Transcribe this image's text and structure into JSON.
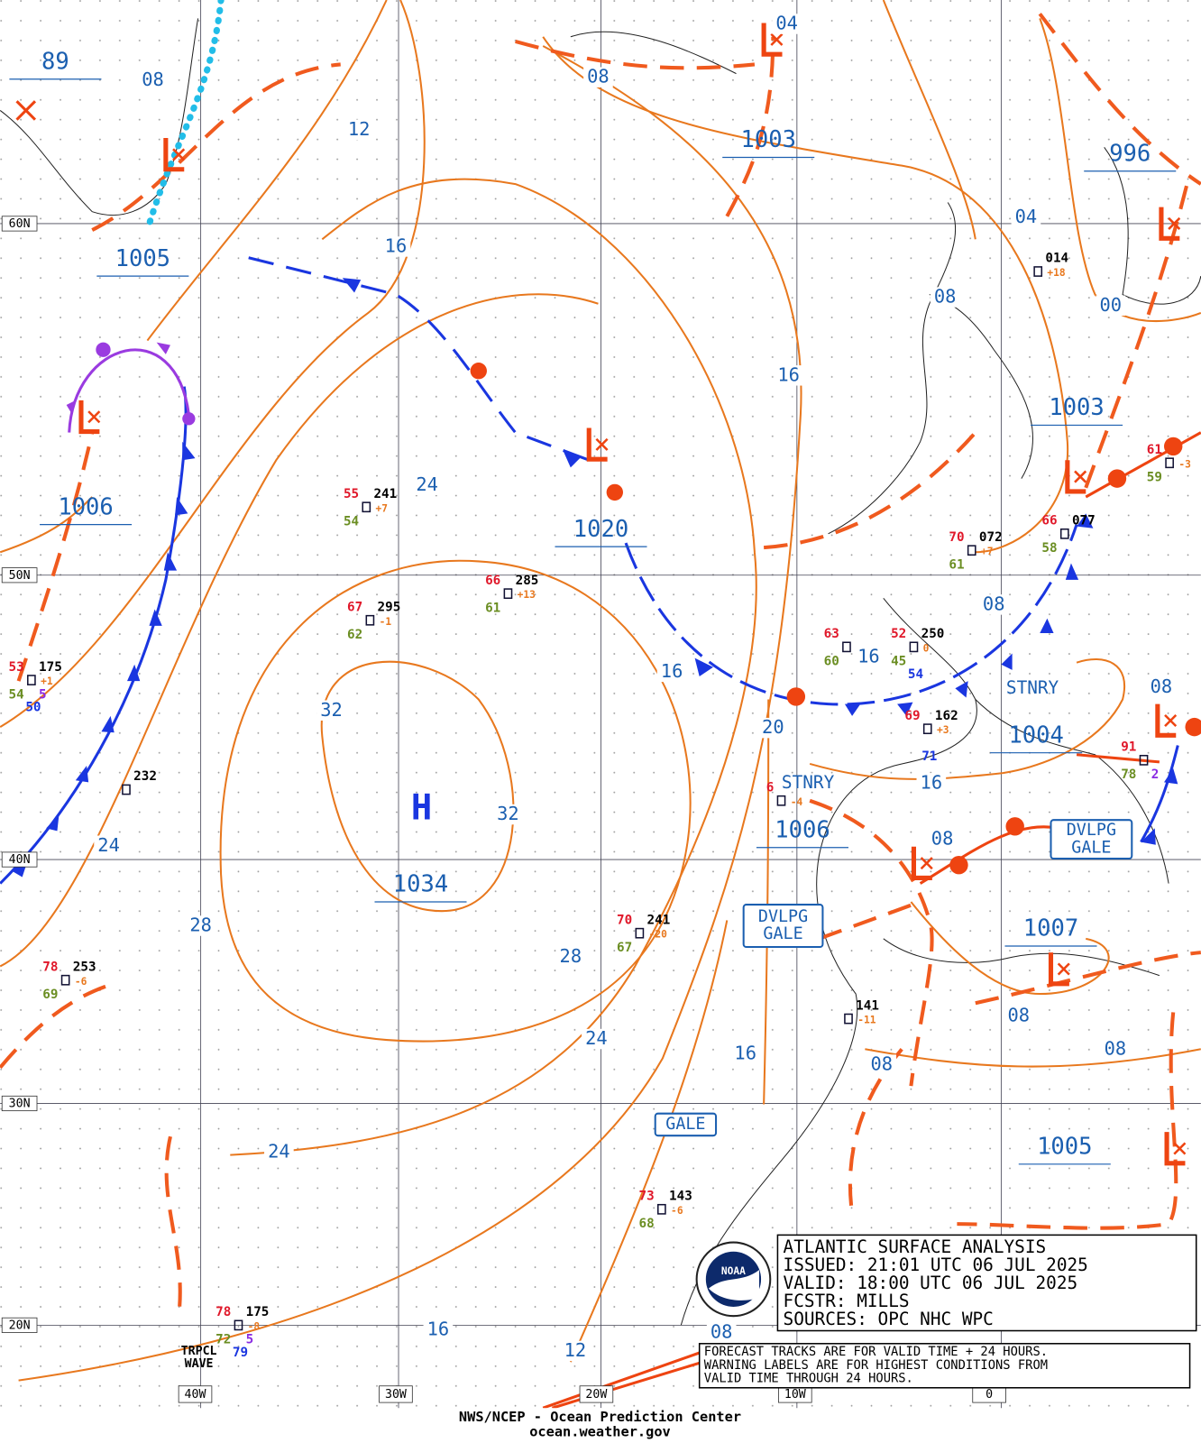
{
  "lat_labels": [
    "60N",
    "50N",
    "40N",
    "30N",
    "20N"
  ],
  "lon_labels": [
    "40W",
    "30W",
    "20W",
    "10W",
    "0"
  ],
  "high": {
    "symbol": "H",
    "pressure": "1034"
  },
  "pressure_labels": [
    "89",
    "1005",
    "1006",
    "1020",
    "1003",
    "996",
    "1003",
    "1004",
    "1006",
    "1007",
    "1005"
  ],
  "isobar_labels": [
    "08",
    "12",
    "16",
    "24",
    "24",
    "32",
    "32",
    "28",
    "28",
    "24",
    "24",
    "16",
    "20",
    "16",
    "16",
    "16",
    "08",
    "04",
    "08",
    "16",
    "08",
    "08",
    "08",
    "08",
    "08",
    "08",
    "16",
    "12",
    "08",
    "00",
    "04"
  ],
  "front_labels": [
    "STNRY",
    "STNRY"
  ],
  "warnings": [
    [
      "DVLPG",
      "GALE"
    ],
    [
      "DVLPG",
      "GALE"
    ],
    [
      "GALE"
    ]
  ],
  "wave_label": [
    "TRPCL",
    "WAVE"
  ],
  "stations": [
    {
      "temp": "55",
      "pressure": "241",
      "dew": "54",
      "tendency": "+7"
    },
    {
      "temp": "66",
      "pressure": "285",
      "dew": "61",
      "tendency": "+13"
    },
    {
      "temp": "67",
      "pressure": "295",
      "dew": "62",
      "tendency": "-1"
    },
    {
      "temp": "53",
      "pressure": "175",
      "dew": "54",
      "tendency": "+1",
      "extra": "5",
      "sst": "50"
    },
    {
      "pressure": "232"
    },
    {
      "temp": "78",
      "pressure": "253",
      "dew": "69",
      "tendency": "-6"
    },
    {
      "temp": "70",
      "pressure": "241",
      "dew": "67",
      "tendency": "-20"
    },
    {
      "pressure": "014",
      "tendency": "+18"
    },
    {
      "temp": "70",
      "pressure": "072",
      "dew": "61",
      "tendency": "+7"
    },
    {
      "temp": "66",
      "pressure": "077",
      "dew": "58"
    },
    {
      "temp": "61",
      "dew": "59",
      "tendency": "-3"
    },
    {
      "temp": "52",
      "pressure": "250",
      "dew": "45",
      "tendency": "0",
      "sst": "54"
    },
    {
      "temp": "63",
      "dew": "60"
    },
    {
      "temp": "69",
      "pressure": "162",
      "tendency": "+3",
      "sst": "71"
    },
    {
      "temp": "6",
      "tendency": "-4"
    },
    {
      "pressure": "141",
      "tendency": "-11"
    },
    {
      "temp": "73",
      "pressure": "143",
      "dew": "68",
      "tendency": "-6"
    },
    {
      "temp": "78",
      "pressure": "175",
      "dew": "72",
      "tendency": "-8",
      "extra": "5",
      "sst": "79"
    },
    {
      "temp": "91",
      "dew": "78",
      "extra": "2"
    }
  ],
  "info": {
    "lines": [
      "ATLANTIC SURFACE ANALYSIS",
      "ISSUED: 21:01 UTC 06 JUL 2025",
      "VALID:  18:00 UTC 06 JUL 2025",
      "FCSTR:  MILLS",
      "SOURCES: OPC NHC WPC"
    ],
    "notes": [
      "FORECAST TRACKS ARE FOR VALID TIME + 24 HOURS.",
      "WARNING LABELS ARE FOR HIGHEST CONDITIONS FROM",
      "VALID TIME THROUGH 24 HOURS."
    ],
    "logo": "NOAA"
  },
  "footer": [
    "NWS/NCEP - Ocean Prediction Center",
    "ocean.weather.gov"
  ]
}
